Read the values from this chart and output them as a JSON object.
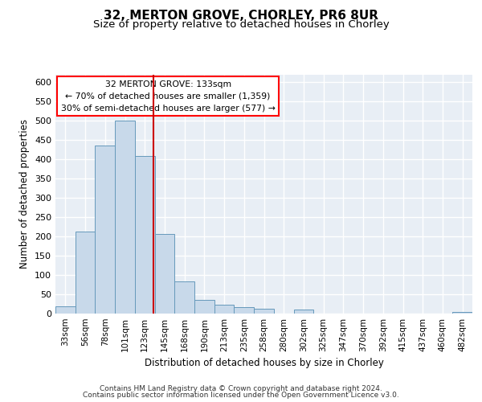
{
  "title_line1": "32, MERTON GROVE, CHORLEY, PR6 8UR",
  "title_line2": "Size of property relative to detached houses in Chorley",
  "xlabel": "Distribution of detached houses by size in Chorley",
  "ylabel": "Number of detached properties",
  "categories": [
    "33sqm",
    "56sqm",
    "78sqm",
    "101sqm",
    "123sqm",
    "145sqm",
    "168sqm",
    "190sqm",
    "213sqm",
    "235sqm",
    "258sqm",
    "280sqm",
    "302sqm",
    "325sqm",
    "347sqm",
    "370sqm",
    "392sqm",
    "415sqm",
    "437sqm",
    "460sqm",
    "482sqm"
  ],
  "values": [
    18,
    212,
    435,
    500,
    408,
    207,
    83,
    36,
    22,
    17,
    12,
    0,
    10,
    0,
    0,
    0,
    0,
    0,
    0,
    0,
    5
  ],
  "bar_color": "#c8d9ea",
  "bar_edge_color": "#6699bb",
  "vline_x": 4.45,
  "annotation_text": "32 MERTON GROVE: 133sqm\n← 70% of detached houses are smaller (1,359)\n30% of semi-detached houses are larger (577) →",
  "vline_color": "#cc0000",
  "ylim_max": 620,
  "yticks": [
    0,
    50,
    100,
    150,
    200,
    250,
    300,
    350,
    400,
    450,
    500,
    550,
    600
  ],
  "bg_color": "#e8eef5",
  "grid_color": "#ffffff",
  "footnote_line1": "Contains HM Land Registry data © Crown copyright and database right 2024.",
  "footnote_line2": "Contains public sector information licensed under the Open Government Licence v3.0."
}
